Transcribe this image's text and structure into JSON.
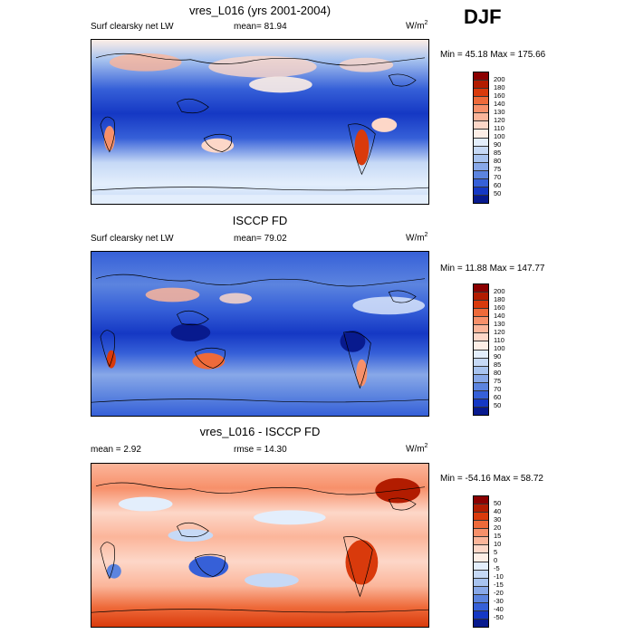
{
  "season": "DJF",
  "scales": {
    "abs": {
      "labels": [
        "200",
        "180",
        "160",
        "140",
        "130",
        "120",
        "110",
        "100",
        "90",
        "85",
        "80",
        "75",
        "70",
        "60",
        "50"
      ],
      "colors": [
        "#8b0000",
        "#b21c00",
        "#d93a0c",
        "#ee6a3a",
        "#f7906a",
        "#fbb59a",
        "#fdd7c8",
        "#fdeee6",
        "#e3eefc",
        "#c6d9f6",
        "#a8c3ef",
        "#88a8e8",
        "#5c84df",
        "#3660d8",
        "#1538c4",
        "#081a8e"
      ]
    },
    "diff": {
      "labels": [
        "50",
        "40",
        "30",
        "20",
        "15",
        "10",
        "5",
        "0",
        "-5",
        "-10",
        "-15",
        "-20",
        "-30",
        "-40",
        "-50"
      ],
      "colors": [
        "#8b0000",
        "#b21c00",
        "#d93a0c",
        "#ee6a3a",
        "#f7906a",
        "#fbb59a",
        "#fdd7c8",
        "#fdeee6",
        "#e3eefc",
        "#c6d9f6",
        "#a8c3ef",
        "#88a8e8",
        "#5c84df",
        "#3660d8",
        "#1538c4",
        "#081a8e"
      ]
    }
  },
  "panels": [
    {
      "title": "vres_L016 (yrs 2001-2004)",
      "left_label": "Surf clearsky net LW",
      "center_label": "mean=  81.94",
      "units": "W/m",
      "units_sup": "2",
      "minmax": "Min =  45.18 Max = 175.66",
      "scale": "abs"
    },
    {
      "title": "ISCCP FD",
      "left_label": "Surf clearsky net LW",
      "center_label": "mean=  79.02",
      "units": "W/m",
      "units_sup": "2",
      "minmax": "Min =  11.88 Max = 147.77",
      "scale": "abs"
    },
    {
      "title": "vres_L016 - ISCCP FD",
      "left_label": "mean =   2.92",
      "center_label": "rmse =  14.30",
      "units": "W/m",
      "units_sup": "2",
      "minmax": "Min = -54.16 Max =  58.72",
      "scale": "diff"
    }
  ]
}
